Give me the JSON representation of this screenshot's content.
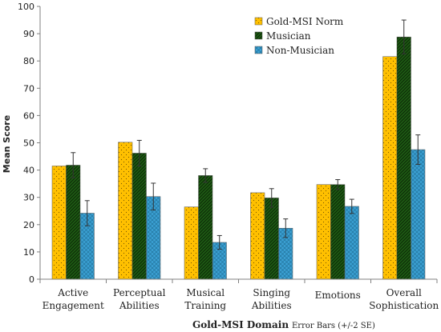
{
  "chart_data": {
    "type": "bar",
    "categories": [
      [
        "Active",
        "Engagement"
      ],
      [
        "Perceptual",
        "Abilities"
      ],
      [
        "Musical",
        "Training"
      ],
      [
        "Singing",
        "Abilities"
      ],
      [
        "Emotions"
      ],
      [
        "Overall",
        "Sophistication"
      ]
    ],
    "series": [
      {
        "name": "Gold-MSI Norm",
        "values": [
          41.5,
          50.2,
          26.5,
          31.7,
          34.7,
          81.6
        ],
        "errors": [
          null,
          null,
          null,
          null,
          null,
          null
        ]
      },
      {
        "name": "Musician",
        "values": [
          41.8,
          46.2,
          38.0,
          29.8,
          34.7,
          88.8
        ],
        "errors": [
          4.6,
          4.7,
          2.5,
          3.4,
          1.8,
          6.2
        ]
      },
      {
        "name": "Non-Musician",
        "values": [
          24.2,
          30.3,
          13.5,
          18.7,
          26.7,
          47.5
        ],
        "errors": [
          4.6,
          4.9,
          2.5,
          3.4,
          2.6,
          5.4
        ]
      }
    ],
    "ylim": [
      0,
      100
    ],
    "yticks": [
      0,
      10,
      20,
      30,
      40,
      50,
      60,
      70,
      80,
      90,
      100
    ],
    "ylabel": "Mean Score",
    "xlabel": "Gold-MSI Domain",
    "note": "Error Bars (+/-2 SE)",
    "legend_position": "top-right",
    "grid": false,
    "colors": {
      "Gold-MSI Norm": "#ffc000",
      "Musician": "#1e5c14",
      "Non-Musician": "#3a9fd1",
      "axis": "#808080"
    }
  }
}
